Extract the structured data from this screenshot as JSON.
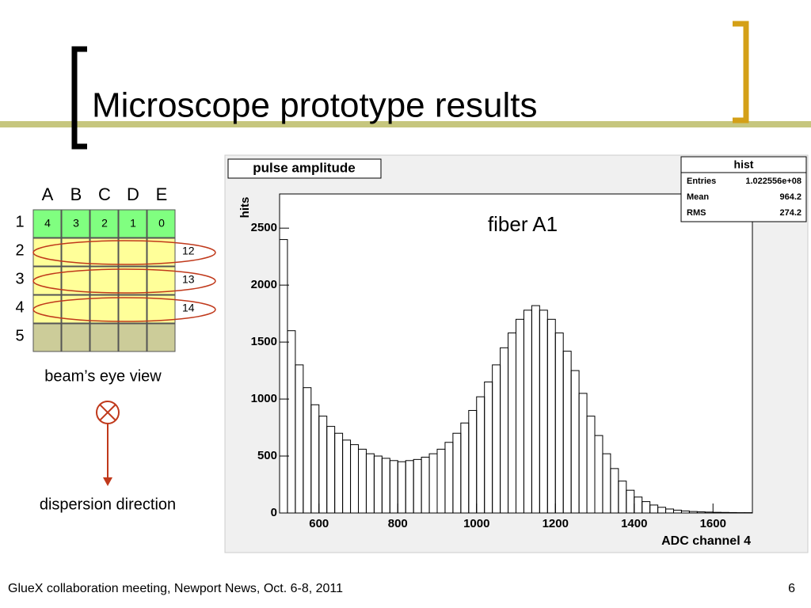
{
  "slide": {
    "title": "Microscope prototype results",
    "footer": "GlueX collaboration meeting, Newport News, Oct. 6-8, 2011",
    "page": "6"
  },
  "diagram": {
    "columns": [
      "A",
      "B",
      "C",
      "D",
      "E"
    ],
    "rows": [
      "1",
      "2",
      "3",
      "4",
      "5"
    ],
    "cells": [
      "4",
      "3",
      "2",
      "1",
      "0"
    ],
    "fibers": [
      "12",
      "13",
      "14"
    ],
    "caption": "beam’s eye view",
    "direction": "dispersion direction"
  },
  "chart_data": {
    "type": "histogram",
    "title": "pulse amplitude",
    "xlabel": "ADC channel 4",
    "ylabel": "hits",
    "annotation": "fiber A1",
    "color": "#000000",
    "bins": [
      500,
      520,
      540,
      560,
      580,
      600,
      620,
      640,
      660,
      680,
      700,
      720,
      740,
      760,
      780,
      800,
      820,
      840,
      860,
      880,
      900,
      920,
      940,
      960,
      980,
      1000,
      1020,
      1040,
      1060,
      1080,
      1100,
      1120,
      1140,
      1160,
      1180,
      1200,
      1220,
      1240,
      1260,
      1280,
      1300,
      1320,
      1340,
      1360,
      1380,
      1400,
      1420,
      1440,
      1460,
      1480,
      1500,
      1520,
      1540,
      1560,
      1580,
      1600,
      1620,
      1640,
      1660,
      1680,
      1700
    ],
    "counts": [
      2400,
      1600,
      1300,
      1100,
      950,
      850,
      760,
      700,
      640,
      600,
      560,
      520,
      500,
      480,
      460,
      450,
      460,
      470,
      490,
      520,
      560,
      620,
      700,
      790,
      900,
      1020,
      1150,
      1300,
      1450,
      1580,
      1700,
      1780,
      1820,
      1780,
      1700,
      1580,
      1420,
      1250,
      1050,
      850,
      680,
      520,
      390,
      280,
      200,
      140,
      100,
      70,
      50,
      35,
      25,
      18,
      13,
      10,
      8,
      6,
      5,
      4,
      3,
      3
    ],
    "xlim": [
      500,
      1700
    ],
    "ylim": [
      0,
      2800
    ],
    "xticks": [
      600,
      800,
      1000,
      1200,
      1400,
      1600
    ],
    "yticks": [
      0,
      500,
      1000,
      1500,
      2000,
      2500
    ],
    "stats": {
      "title": "hist",
      "rows": [
        [
          "Entries",
          "1.022556e+08"
        ],
        [
          "Mean",
          "964.2"
        ],
        [
          "RMS",
          "274.2"
        ]
      ]
    }
  }
}
